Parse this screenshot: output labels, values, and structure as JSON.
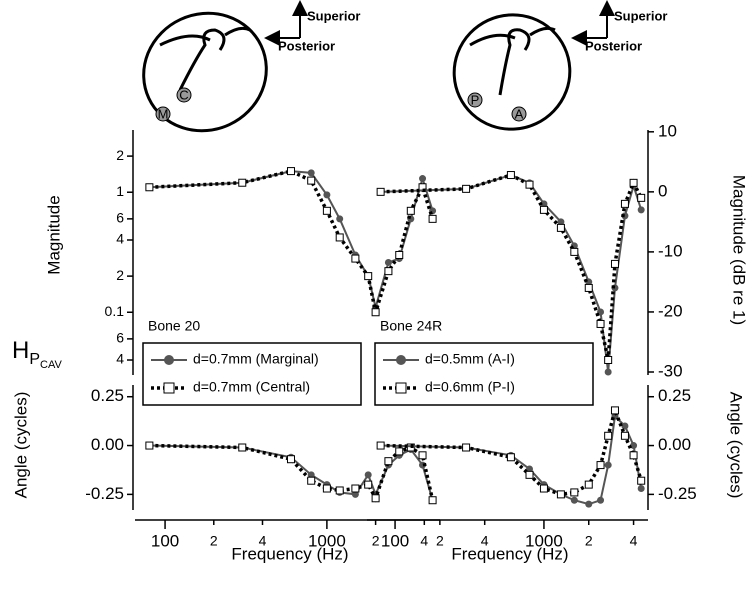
{
  "figure": {
    "h_main": "H",
    "h_sub": "P",
    "h_subsub": "CAV"
  },
  "diagrams": [
    {
      "superior": "Superior",
      "posterior": "Posterior",
      "sites": [
        "M",
        "C"
      ]
    },
    {
      "superior": "Superior",
      "posterior": "Posterior",
      "sites": [
        "P",
        "A"
      ]
    }
  ],
  "chart_data": [
    {
      "type": "line",
      "y_axis": "left",
      "log_x": true,
      "log_y": true,
      "y_label": "Magnitude",
      "annotation": "Bone 20",
      "legend": "lower left",
      "x": [
        80,
        300,
        600,
        800,
        1000,
        1200,
        1500,
        1800,
        2000,
        2400,
        2800,
        3300,
        3900,
        4500
      ],
      "xlim": [
        70,
        5000
      ],
      "ylim": [
        0.03,
        3.3
      ],
      "yticks": [
        {
          "value": 0.04,
          "label": "4"
        },
        {
          "value": 0.06,
          "label": "6"
        },
        0.1,
        {
          "value": 0.2,
          "label": "2"
        },
        {
          "value": 0.4,
          "label": "4"
        },
        {
          "value": 0.6,
          "label": "6"
        },
        1,
        {
          "value": 2,
          "label": "2"
        }
      ],
      "series": [
        {
          "name": "d=0.7mm (Marginal)",
          "color": "#555555",
          "marker": "circle",
          "dash": "solid",
          "values": [
            1.1,
            1.2,
            1.5,
            1.45,
            0.95,
            0.6,
            0.3,
            0.2,
            0.11,
            0.26,
            0.28,
            0.6,
            1.3,
            0.7
          ]
        },
        {
          "name": "d=0.7mm (Central)",
          "color": "#000000",
          "marker": "square",
          "dash": "dotted",
          "values": [
            1.1,
            1.2,
            1.5,
            1.25,
            0.7,
            0.42,
            0.28,
            0.2,
            0.1,
            0.22,
            0.3,
            0.7,
            1.1,
            0.6
          ]
        }
      ]
    },
    {
      "type": "line",
      "y_axis": "right",
      "log_x": true,
      "log_y": false,
      "y_label": "Magnitude (dB re 1)",
      "annotation": "Bone 24R",
      "legend": "lower left",
      "x": [
        80,
        300,
        600,
        800,
        1000,
        1300,
        1600,
        2000,
        2400,
        2700,
        3000,
        3500,
        4000,
        4500
      ],
      "xlim": [
        70,
        5000
      ],
      "ylim": [
        -30.5,
        10.3
      ],
      "yticks": [
        10,
        0,
        -10,
        -20,
        -30
      ],
      "series": [
        {
          "name": "d=0.5mm (A-I)",
          "color": "#555555",
          "marker": "circle",
          "dash": "solid",
          "values": [
            0,
            0.5,
            2.8,
            1.5,
            -2,
            -5,
            -9,
            -15,
            -20,
            -30,
            -16,
            -4,
            1,
            -3
          ]
        },
        {
          "name": "d=0.6mm (P-I)",
          "color": "#000000",
          "marker": "square",
          "dash": "dotted",
          "values": [
            0,
            0.5,
            2.8,
            1.2,
            -3,
            -6,
            -10,
            -16,
            -22,
            -28,
            -12,
            -2,
            1.5,
            -1
          ]
        }
      ]
    },
    {
      "type": "line",
      "y_axis": "left",
      "log_x": true,
      "log_y": false,
      "y_label": "Angle (cycles)",
      "x_label": "Frequency (Hz)",
      "x": [
        80,
        300,
        600,
        800,
        1000,
        1200,
        1500,
        1800,
        2000,
        2400,
        2800,
        3300,
        3900,
        4500
      ],
      "xlim": [
        70,
        5000
      ],
      "ylim": [
        -0.33,
        0.31
      ],
      "xticks": [
        100,
        {
          "value": 200,
          "label": "2"
        },
        {
          "value": 400,
          "label": "4"
        },
        1000,
        {
          "value": 2000,
          "label": "2"
        },
        {
          "value": 4000,
          "label": "4"
        }
      ],
      "yticks": [
        0.25,
        {
          "value": 0,
          "label": "0.00"
        },
        -0.25
      ],
      "series": [
        {
          "color": "#555555",
          "marker": "circle",
          "dash": "solid",
          "values": [
            0,
            -0.01,
            -0.06,
            -0.15,
            -0.2,
            -0.24,
            -0.25,
            -0.15,
            -0.25,
            -0.1,
            -0.05,
            -0.02,
            -0.1,
            -0.28
          ]
        },
        {
          "color": "#000000",
          "marker": "square",
          "dash": "dotted",
          "values": [
            0,
            -0.01,
            -0.07,
            -0.18,
            -0.22,
            -0.23,
            -0.22,
            -0.2,
            -0.27,
            -0.08,
            -0.03,
            -0.01,
            -0.05,
            -0.28
          ]
        }
      ]
    },
    {
      "type": "line",
      "y_axis": "right",
      "log_x": true,
      "log_y": false,
      "y_label": "Angle (cycles)",
      "x_label": "Frequency (Hz)",
      "x": [
        80,
        300,
        600,
        800,
        1000,
        1300,
        1600,
        2000,
        2400,
        2700,
        3000,
        3500,
        4000,
        4500
      ],
      "xlim": [
        70,
        5000
      ],
      "ylim": [
        -0.33,
        0.31
      ],
      "xticks": [
        100,
        {
          "value": 200,
          "label": "2"
        },
        {
          "value": 400,
          "label": "4"
        },
        1000,
        {
          "value": 2000,
          "label": "2"
        },
        {
          "value": 4000,
          "label": "4"
        }
      ],
      "yticks": [
        0.25,
        {
          "value": 0,
          "label": "0.00"
        },
        -0.25
      ],
      "series": [
        {
          "color": "#555555",
          "marker": "circle",
          "dash": "solid",
          "values": [
            0,
            -0.01,
            -0.05,
            -0.12,
            -0.2,
            -0.25,
            -0.28,
            -0.3,
            -0.28,
            -0.1,
            0.15,
            0.1,
            0,
            -0.22
          ]
        },
        {
          "color": "#000000",
          "marker": "square",
          "dash": "dotted",
          "values": [
            0,
            -0.01,
            -0.06,
            -0.15,
            -0.22,
            -0.25,
            -0.24,
            -0.2,
            -0.1,
            0.05,
            0.18,
            0.05,
            -0.05,
            -0.18
          ]
        }
      ]
    }
  ]
}
